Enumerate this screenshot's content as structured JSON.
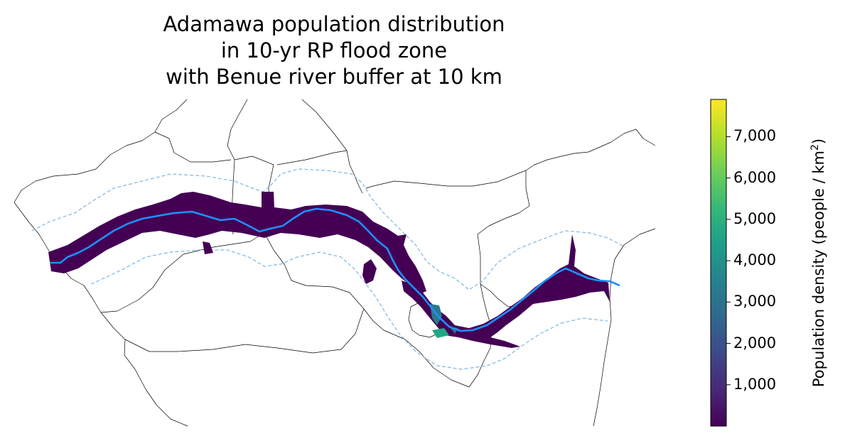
{
  "title": {
    "line1": "Adamawa population distribution",
    "line2": "in 10-yr RP flood zone",
    "line3": "with Benue river buffer at 10 km"
  },
  "colorbar": {
    "label_text": "Population density (people / km",
    "label_sup": "2",
    "label_close": ")",
    "min": 0,
    "max": 7900,
    "ticks": [
      {
        "value": 1000,
        "label": "1,000"
      },
      {
        "value": 2000,
        "label": "2,000"
      },
      {
        "value": 3000,
        "label": "3,000"
      },
      {
        "value": 4000,
        "label": "4,000"
      },
      {
        "value": 5000,
        "label": "5,000"
      },
      {
        "value": 6000,
        "label": "6,000"
      },
      {
        "value": 7000,
        "label": "7,000"
      }
    ],
    "colormap": [
      "#440154",
      "#482878",
      "#3e4989",
      "#31688e",
      "#26828e",
      "#1f9e89",
      "#35b779",
      "#6ece58",
      "#b5de2b",
      "#fde725"
    ]
  },
  "colors": {
    "flood_zone": "#440154",
    "river": "#1e90ff",
    "buffer": "#7fb6e0",
    "boundaries": "#000000"
  }
}
